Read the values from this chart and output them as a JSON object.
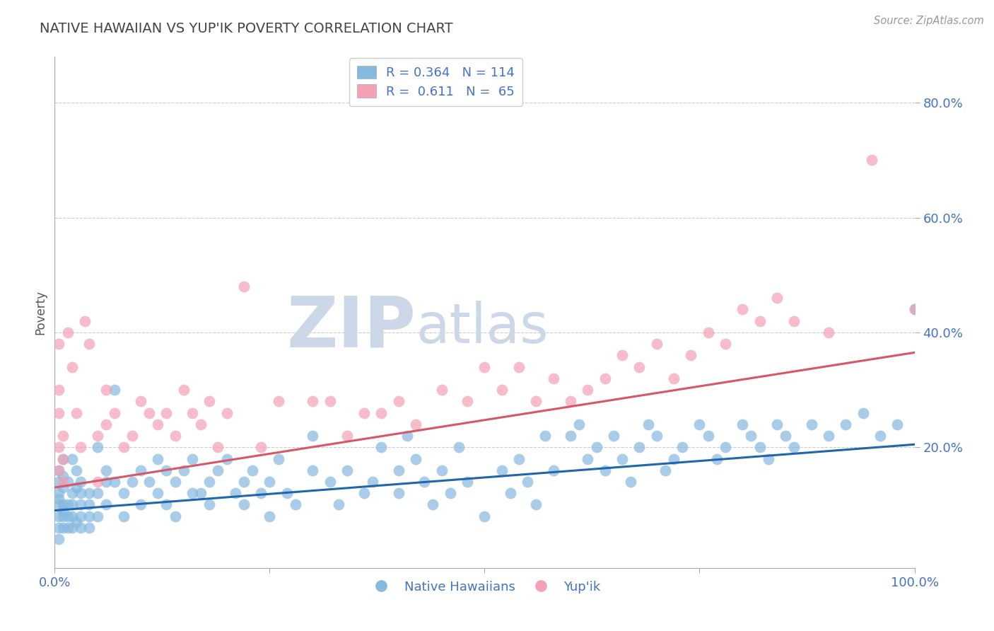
{
  "title": "NATIVE HAWAIIAN VS YUP'IK POVERTY CORRELATION CHART",
  "source_text": "Source: ZipAtlas.com",
  "ylabel": "Poverty",
  "xlim": [
    0.0,
    1.0
  ],
  "ylim": [
    -0.01,
    0.88
  ],
  "yticks": [
    0.2,
    0.4,
    0.6,
    0.8
  ],
  "ytick_labels": [
    "20.0%",
    "40.0%",
    "60.0%",
    "80.0%"
  ],
  "xticks": [
    0.0,
    0.25,
    0.5,
    0.75,
    1.0
  ],
  "xtick_labels": [
    "0.0%",
    "",
    "",
    "",
    "100.0%"
  ],
  "blue_color": "#85b9e0",
  "pink_color": "#f4a0b5",
  "blue_line_color": "#2166ac",
  "pink_line_color": "#d6566a",
  "watermark_color": "#ccd8e8",
  "background_color": "#ffffff",
  "grid_color": "#cccccc",
  "title_color": "#444444",
  "axis_label_color": "#555555",
  "tick_color": "#4472c4",
  "source_color": "#999999",
  "blue_line_x": [
    0.0,
    1.0
  ],
  "blue_line_y": [
    0.09,
    0.205
  ],
  "pink_line_x": [
    0.0,
    1.0
  ],
  "pink_line_y": [
    0.13,
    0.365
  ],
  "blue_scatter": [
    [
      0.005,
      0.14
    ],
    [
      0.005,
      0.12
    ],
    [
      0.005,
      0.1
    ],
    [
      0.005,
      0.08
    ],
    [
      0.005,
      0.06
    ],
    [
      0.005,
      0.04
    ],
    [
      0.005,
      0.16
    ],
    [
      0.005,
      0.11
    ],
    [
      0.01,
      0.1
    ],
    [
      0.01,
      0.08
    ],
    [
      0.01,
      0.13
    ],
    [
      0.01,
      0.06
    ],
    [
      0.01,
      0.18
    ],
    [
      0.01,
      0.09
    ],
    [
      0.01,
      0.15
    ],
    [
      0.015,
      0.14
    ],
    [
      0.015,
      0.08
    ],
    [
      0.015,
      0.1
    ],
    [
      0.015,
      0.06
    ],
    [
      0.02,
      0.12
    ],
    [
      0.02,
      0.18
    ],
    [
      0.02,
      0.1
    ],
    [
      0.02,
      0.06
    ],
    [
      0.02,
      0.08
    ],
    [
      0.025,
      0.13
    ],
    [
      0.025,
      0.07
    ],
    [
      0.025,
      0.16
    ],
    [
      0.03,
      0.14
    ],
    [
      0.03,
      0.08
    ],
    [
      0.03,
      0.1
    ],
    [
      0.03,
      0.06
    ],
    [
      0.03,
      0.12
    ],
    [
      0.04,
      0.1
    ],
    [
      0.04,
      0.06
    ],
    [
      0.04,
      0.08
    ],
    [
      0.04,
      0.12
    ],
    [
      0.05,
      0.2
    ],
    [
      0.05,
      0.12
    ],
    [
      0.05,
      0.08
    ],
    [
      0.06,
      0.14
    ],
    [
      0.06,
      0.1
    ],
    [
      0.06,
      0.16
    ],
    [
      0.07,
      0.3
    ],
    [
      0.07,
      0.14
    ],
    [
      0.08,
      0.12
    ],
    [
      0.08,
      0.08
    ],
    [
      0.09,
      0.14
    ],
    [
      0.1,
      0.16
    ],
    [
      0.1,
      0.1
    ],
    [
      0.11,
      0.14
    ],
    [
      0.12,
      0.18
    ],
    [
      0.12,
      0.12
    ],
    [
      0.13,
      0.16
    ],
    [
      0.13,
      0.1
    ],
    [
      0.14,
      0.14
    ],
    [
      0.14,
      0.08
    ],
    [
      0.15,
      0.16
    ],
    [
      0.16,
      0.12
    ],
    [
      0.16,
      0.18
    ],
    [
      0.17,
      0.12
    ],
    [
      0.18,
      0.1
    ],
    [
      0.18,
      0.14
    ],
    [
      0.19,
      0.16
    ],
    [
      0.2,
      0.18
    ],
    [
      0.21,
      0.12
    ],
    [
      0.22,
      0.14
    ],
    [
      0.22,
      0.1
    ],
    [
      0.23,
      0.16
    ],
    [
      0.24,
      0.12
    ],
    [
      0.25,
      0.14
    ],
    [
      0.25,
      0.08
    ],
    [
      0.26,
      0.18
    ],
    [
      0.27,
      0.12
    ],
    [
      0.28,
      0.1
    ],
    [
      0.3,
      0.16
    ],
    [
      0.3,
      0.22
    ],
    [
      0.32,
      0.14
    ],
    [
      0.33,
      0.1
    ],
    [
      0.34,
      0.16
    ],
    [
      0.36,
      0.12
    ],
    [
      0.37,
      0.14
    ],
    [
      0.38,
      0.2
    ],
    [
      0.4,
      0.16
    ],
    [
      0.4,
      0.12
    ],
    [
      0.41,
      0.22
    ],
    [
      0.42,
      0.18
    ],
    [
      0.43,
      0.14
    ],
    [
      0.44,
      0.1
    ],
    [
      0.45,
      0.16
    ],
    [
      0.46,
      0.12
    ],
    [
      0.47,
      0.2
    ],
    [
      0.48,
      0.14
    ],
    [
      0.5,
      0.08
    ],
    [
      0.52,
      0.16
    ],
    [
      0.53,
      0.12
    ],
    [
      0.54,
      0.18
    ],
    [
      0.55,
      0.14
    ],
    [
      0.56,
      0.1
    ],
    [
      0.57,
      0.22
    ],
    [
      0.58,
      0.16
    ],
    [
      0.6,
      0.22
    ],
    [
      0.61,
      0.24
    ],
    [
      0.62,
      0.18
    ],
    [
      0.63,
      0.2
    ],
    [
      0.64,
      0.16
    ],
    [
      0.65,
      0.22
    ],
    [
      0.66,
      0.18
    ],
    [
      0.67,
      0.14
    ],
    [
      0.68,
      0.2
    ],
    [
      0.69,
      0.24
    ],
    [
      0.7,
      0.22
    ],
    [
      0.71,
      0.16
    ],
    [
      0.72,
      0.18
    ],
    [
      0.73,
      0.2
    ],
    [
      0.75,
      0.24
    ],
    [
      0.76,
      0.22
    ],
    [
      0.77,
      0.18
    ],
    [
      0.78,
      0.2
    ],
    [
      0.8,
      0.24
    ],
    [
      0.81,
      0.22
    ],
    [
      0.82,
      0.2
    ],
    [
      0.83,
      0.18
    ],
    [
      0.84,
      0.24
    ],
    [
      0.85,
      0.22
    ],
    [
      0.86,
      0.2
    ],
    [
      0.88,
      0.24
    ],
    [
      0.9,
      0.22
    ],
    [
      0.92,
      0.24
    ],
    [
      0.94,
      0.26
    ],
    [
      0.96,
      0.22
    ],
    [
      0.98,
      0.24
    ],
    [
      1.0,
      0.44
    ]
  ],
  "pink_scatter": [
    [
      0.005,
      0.38
    ],
    [
      0.005,
      0.3
    ],
    [
      0.005,
      0.26
    ],
    [
      0.005,
      0.2
    ],
    [
      0.005,
      0.16
    ],
    [
      0.01,
      0.14
    ],
    [
      0.01,
      0.22
    ],
    [
      0.01,
      0.18
    ],
    [
      0.015,
      0.4
    ],
    [
      0.02,
      0.34
    ],
    [
      0.025,
      0.26
    ],
    [
      0.03,
      0.2
    ],
    [
      0.035,
      0.42
    ],
    [
      0.04,
      0.38
    ],
    [
      0.05,
      0.14
    ],
    [
      0.05,
      0.22
    ],
    [
      0.06,
      0.3
    ],
    [
      0.06,
      0.24
    ],
    [
      0.07,
      0.26
    ],
    [
      0.08,
      0.2
    ],
    [
      0.09,
      0.22
    ],
    [
      0.1,
      0.28
    ],
    [
      0.11,
      0.26
    ],
    [
      0.12,
      0.24
    ],
    [
      0.13,
      0.26
    ],
    [
      0.14,
      0.22
    ],
    [
      0.15,
      0.3
    ],
    [
      0.16,
      0.26
    ],
    [
      0.17,
      0.24
    ],
    [
      0.18,
      0.28
    ],
    [
      0.19,
      0.2
    ],
    [
      0.2,
      0.26
    ],
    [
      0.22,
      0.48
    ],
    [
      0.24,
      0.2
    ],
    [
      0.26,
      0.28
    ],
    [
      0.3,
      0.28
    ],
    [
      0.32,
      0.28
    ],
    [
      0.34,
      0.22
    ],
    [
      0.36,
      0.26
    ],
    [
      0.38,
      0.26
    ],
    [
      0.4,
      0.28
    ],
    [
      0.42,
      0.24
    ],
    [
      0.45,
      0.3
    ],
    [
      0.48,
      0.28
    ],
    [
      0.5,
      0.34
    ],
    [
      0.52,
      0.3
    ],
    [
      0.54,
      0.34
    ],
    [
      0.56,
      0.28
    ],
    [
      0.58,
      0.32
    ],
    [
      0.6,
      0.28
    ],
    [
      0.62,
      0.3
    ],
    [
      0.64,
      0.32
    ],
    [
      0.66,
      0.36
    ],
    [
      0.68,
      0.34
    ],
    [
      0.7,
      0.38
    ],
    [
      0.72,
      0.32
    ],
    [
      0.74,
      0.36
    ],
    [
      0.76,
      0.4
    ],
    [
      0.78,
      0.38
    ],
    [
      0.8,
      0.44
    ],
    [
      0.82,
      0.42
    ],
    [
      0.84,
      0.46
    ],
    [
      0.86,
      0.42
    ],
    [
      0.9,
      0.4
    ],
    [
      0.95,
      0.7
    ],
    [
      1.0,
      0.44
    ]
  ]
}
